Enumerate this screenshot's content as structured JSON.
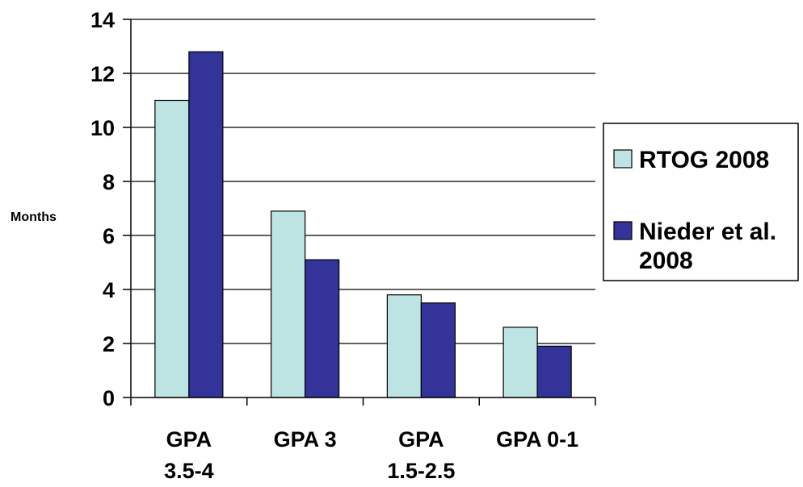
{
  "chart_data": {
    "type": "bar",
    "title": "",
    "xlabel": "",
    "ylabel": "Months",
    "ylim": [
      0,
      14
    ],
    "yticks": [
      0,
      2,
      4,
      6,
      8,
      10,
      12,
      14
    ],
    "grid": true,
    "legend_position": "right",
    "categories": [
      [
        "GPA",
        "3.5-4"
      ],
      [
        "GPA 3"
      ],
      [
        "GPA",
        "1.5-2.5"
      ],
      [
        "GPA 0-1"
      ]
    ],
    "series": [
      {
        "name": "RTOG 2008",
        "color": "#BDE3E3",
        "values": [
          11.0,
          6.9,
          3.8,
          2.6
        ]
      },
      {
        "name": "Nieder et al. 2008",
        "color": "#333399",
        "values": [
          12.8,
          5.1,
          3.5,
          1.9
        ]
      }
    ],
    "legend": {
      "entries": [
        {
          "lines": [
            "RTOG 2008"
          ]
        },
        {
          "lines": [
            "Nieder et al.",
            "2008"
          ]
        }
      ]
    }
  }
}
